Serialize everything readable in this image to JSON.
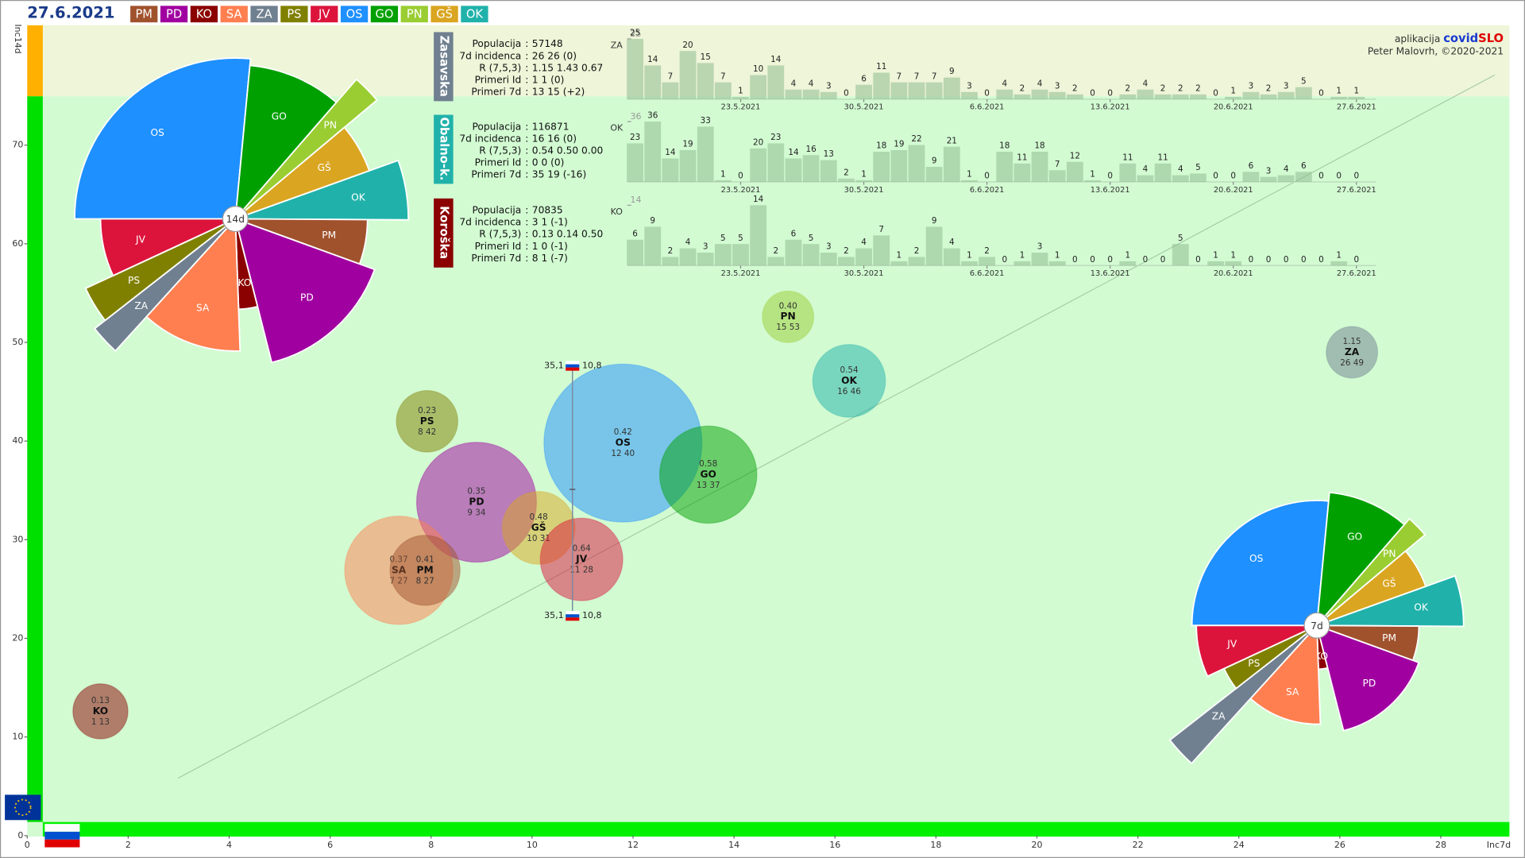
{
  "header": {
    "date": "27.6.2021",
    "regions": [
      {
        "code": "PM",
        "color": "#a0522d"
      },
      {
        "code": "PD",
        "color": "#a000a0"
      },
      {
        "code": "KO",
        "color": "#8b0000"
      },
      {
        "code": "SA",
        "color": "#ff7f50"
      },
      {
        "code": "ZA",
        "color": "#708090"
      },
      {
        "code": "PS",
        "color": "#808000"
      },
      {
        "code": "JV",
        "color": "#dc143c"
      },
      {
        "code": "OS",
        "color": "#1e90ff"
      },
      {
        "code": "GO",
        "color": "#00a000"
      },
      {
        "code": "PN",
        "color": "#9acd32"
      },
      {
        "code": "GŠ",
        "color": "#daa520"
      },
      {
        "code": "OK",
        "color": "#20b2aa"
      }
    ]
  },
  "app": {
    "prefix": "aplikacija ",
    "name_1": "covid",
    "name_2": "SLO",
    "author": "Peter Malovrh, ©2020-2021"
  },
  "chart_data": [
    {
      "type": "bubble",
      "x_label": "Inc7d",
      "y_label": "Inc14d",
      "xlim": [
        0,
        29.36
      ],
      "ylim": [
        0,
        82.15
      ],
      "xticks": [
        0,
        2,
        4,
        6,
        8,
        10,
        12,
        14,
        16,
        18,
        20,
        22,
        24,
        26,
        28
      ],
      "yticks": [
        0,
        10,
        20,
        30,
        40,
        50,
        60,
        70
      ],
      "country": {
        "x": {
          "value": 10.8,
          "label": "10,8"
        },
        "y": {
          "value": 35.1,
          "label": "35,1"
        }
      },
      "categories": [
        "OS",
        "GO",
        "PD",
        "SA",
        "PM",
        "GŠ",
        "JV",
        "PS",
        "PN",
        "OK",
        "ZA",
        "KO"
      ],
      "colors": [
        "#1e90ff",
        "#00a000",
        "#a000a0",
        "#ff7f50",
        "#a0522d",
        "#daa520",
        "#dc143c",
        "#808000",
        "#9acd32",
        "#20b2aa",
        "#708090",
        "#8b0000"
      ],
      "x": [
        11.8,
        13.49,
        8.9,
        7.36,
        7.88,
        10.13,
        10.98,
        7.92,
        15.07,
        16.28,
        26.24,
        1.45
      ],
      "values": [
        39.8,
        36.6,
        33.8,
        26.9,
        26.9,
        31.2,
        28.0,
        42.0,
        52.6,
        46.1,
        49.0,
        12.6
      ],
      "sizes": [
        66,
        25,
        38,
        31,
        13,
        14,
        18,
        10,
        7,
        14,
        7,
        8
      ],
      "r_labels": [
        "0.42",
        "0.58",
        "0.35",
        "0.37",
        "0.41",
        "0.48",
        "0.64",
        "0.23",
        "0.40",
        "0.54",
        "1.15",
        "0.13"
      ],
      "value_labels": [
        "12 40",
        "13 37",
        "9 34",
        "7 27",
        "8 27",
        "10 31",
        "11 28",
        "8 42",
        "15 53",
        "16 46",
        "26 49",
        "1 13"
      ]
    },
    {
      "type": "polar_pie",
      "center_label": "14d",
      "categories": [
        "OS",
        "GO",
        "PN",
        "GŠ",
        "OK",
        "PM",
        "PD",
        "KO",
        "SA",
        "ZA",
        "PS",
        "JV"
      ],
      "colors": [
        "#1e90ff",
        "#00a000",
        "#9acd32",
        "#daa520",
        "#20b2aa",
        "#a0522d",
        "#a000a0",
        "#8b0000",
        "#ff7f50",
        "#708090",
        "#808000",
        "#dc143c"
      ],
      "values": [
        39.8,
        36.6,
        52.6,
        31.2,
        46.1,
        26.9,
        33.8,
        12.6,
        26.9,
        49.0,
        42.0,
        28.0
      ],
      "weights": [
        555500,
        206900,
        52800,
        117800,
        116871,
        114300,
        325000,
        70835,
        258000,
        57148,
        75800,
        145000
      ]
    },
    {
      "type": "polar_pie",
      "center_label": "7d",
      "categories": [
        "OS",
        "GO",
        "PN",
        "GŠ",
        "OK",
        "PM",
        "PD",
        "KO",
        "SA",
        "ZA",
        "PS",
        "JV"
      ],
      "colors": [
        "#1e90ff",
        "#00a000",
        "#9acd32",
        "#daa520",
        "#20b2aa",
        "#a0522d",
        "#a000a0",
        "#8b0000",
        "#ff7f50",
        "#708090",
        "#808000",
        "#dc143c"
      ],
      "values": [
        11.8,
        13.49,
        15.07,
        10.13,
        16.28,
        7.88,
        8.9,
        1.45,
        7.36,
        26.24,
        7.92,
        10.98
      ],
      "weights": [
        555500,
        206900,
        52800,
        117800,
        116871,
        114300,
        325000,
        70835,
        258000,
        57148,
        75800,
        145000
      ]
    },
    {
      "type": "bar",
      "title": "Zasavska",
      "code": "ZA",
      "tab_color": "#708090",
      "color": "#8fbc8f",
      "info": [
        {
          "label": "Populacija",
          "value": 57148
        },
        {
          "label": "7d incidenca",
          "value": "26 26 (0)"
        },
        {
          "label": "R (7,5,3)",
          "value": "1.15 1.43 0.67"
        },
        {
          "label": "Primeri Id",
          "value": "1 1 (0)"
        },
        {
          "label": "Primeri 7d",
          "value": "13 15 (+2)"
        }
      ],
      "values": [
        25,
        14,
        7,
        20,
        15,
        7,
        1,
        10,
        14,
        4,
        4,
        3,
        0,
        6,
        11,
        7,
        7,
        7,
        9,
        3,
        0,
        4,
        2,
        4,
        3,
        2,
        0,
        0,
        2,
        4,
        2,
        2,
        2,
        0,
        1,
        3,
        2,
        3,
        5,
        0,
        1,
        1
      ],
      "ylim": [
        0,
        25
      ],
      "yticks": [
        25
      ],
      "xticks": [
        {
          "value": 6,
          "label": "23.5.2021"
        },
        {
          "value": 13,
          "label": "30.5.2021"
        },
        {
          "value": 20,
          "label": "6.6.2021"
        },
        {
          "value": 27,
          "label": "13.6.2021"
        },
        {
          "value": 34,
          "label": "20.6.2021"
        },
        {
          "value": 41,
          "label": "27.6.2021"
        }
      ]
    },
    {
      "type": "bar",
      "title": "Obalno-k.",
      "code": "OK",
      "tab_color": "#20b2aa",
      "color": "#8fbc8f",
      "info": [
        {
          "label": "Populacija",
          "value": 116871
        },
        {
          "label": "7d incidenca",
          "value": "16 16 (0)"
        },
        {
          "label": "R (7,5,3)",
          "value": "0.54 0.50 0.00"
        },
        {
          "label": "Primeri Id",
          "value": "0 0 (0)"
        },
        {
          "label": "Primeri 7d",
          "value": "35 19 (-16)"
        }
      ],
      "values": [
        23,
        36,
        14,
        19,
        33,
        1,
        0,
        20,
        23,
        14,
        16,
        13,
        2,
        1,
        18,
        19,
        22,
        9,
        21,
        1,
        0,
        18,
        11,
        18,
        7,
        12,
        1,
        0,
        11,
        4,
        11,
        4,
        5,
        0,
        0,
        6,
        3,
        4,
        6,
        0,
        0,
        0
      ],
      "ylim": [
        0,
        36
      ],
      "yticks": [
        36
      ],
      "xticks": [
        {
          "value": 6,
          "label": "23.5.2021"
        },
        {
          "value": 13,
          "label": "30.5.2021"
        },
        {
          "value": 20,
          "label": "6.6.2021"
        },
        {
          "value": 27,
          "label": "13.6.2021"
        },
        {
          "value": 34,
          "label": "20.6.2021"
        },
        {
          "value": 41,
          "label": "27.6.2021"
        }
      ]
    },
    {
      "type": "bar",
      "title": "Koroška",
      "code": "KO",
      "tab_color": "#8b0000",
      "color": "#8fbc8f",
      "info": [
        {
          "label": "Populacija",
          "value": 70835
        },
        {
          "label": "7d incidenca",
          "value": "3 1 (-1)"
        },
        {
          "label": "R (7,5,3)",
          "value": "0.13 0.14 0.50"
        },
        {
          "label": "Primeri Id",
          "value": "1 0 (-1)"
        },
        {
          "label": "Primeri 7d",
          "value": "8 1 (-7)"
        }
      ],
      "values": [
        6,
        9,
        2,
        4,
        3,
        5,
        5,
        14,
        2,
        6,
        5,
        3,
        2,
        4,
        7,
        1,
        2,
        9,
        4,
        1,
        2,
        0,
        1,
        3,
        1,
        0,
        0,
        0,
        1,
        0,
        0,
        5,
        0,
        1,
        1,
        0,
        0,
        0,
        0,
        0,
        1,
        0
      ],
      "ylim": [
        0,
        14
      ],
      "yticks": [
        14
      ],
      "xticks": [
        {
          "value": 6,
          "label": "23.5.2021"
        },
        {
          "value": 13,
          "label": "30.5.2021"
        },
        {
          "value": 20,
          "label": "6.6.2021"
        },
        {
          "value": 27,
          "label": "13.6.2021"
        },
        {
          "value": 34,
          "label": "20.6.2021"
        },
        {
          "value": 41,
          "label": "27.6.2021"
        }
      ]
    }
  ]
}
